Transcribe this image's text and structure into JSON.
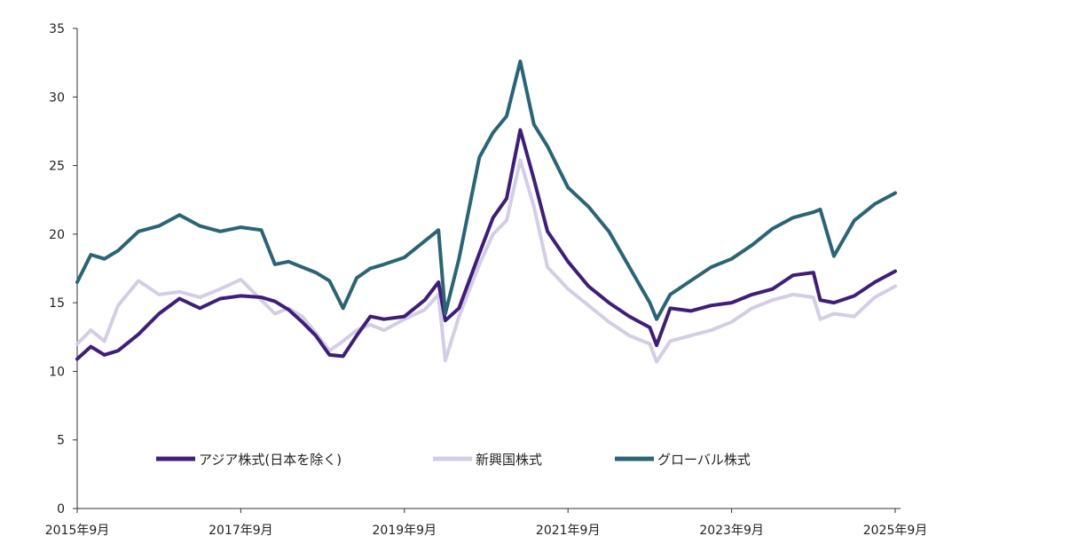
{
  "chart_data": {
    "type": "line",
    "y_axis": {
      "min": 0,
      "max": 35,
      "ticks": [
        0,
        5,
        10,
        15,
        20,
        25,
        30,
        35
      ]
    },
    "x_axis": {
      "min": "2015-09",
      "max": "2025-09",
      "tick_dates": [
        "2015-09",
        "2017-09",
        "2019-09",
        "2021-09",
        "2023-09",
        "2025-09"
      ],
      "tick_labels": [
        "2015年9月",
        "2017年9月",
        "2019年9月",
        "2021年9月",
        "2023年9月",
        "2025年9月"
      ]
    },
    "grid": false,
    "legend": {
      "placement": "bottom-center"
    },
    "series": [
      {
        "name": "アジア株式(日本を除く)",
        "color": "#3f1e78",
        "points": [
          [
            "2015-09",
            10.9
          ],
          [
            "2015-11",
            11.8
          ],
          [
            "2016-01",
            11.2
          ],
          [
            "2016-03",
            11.5
          ],
          [
            "2016-06",
            12.7
          ],
          [
            "2016-09",
            14.2
          ],
          [
            "2016-12",
            15.3
          ],
          [
            "2017-03",
            14.6
          ],
          [
            "2017-06",
            15.3
          ],
          [
            "2017-09",
            15.5
          ],
          [
            "2017-12",
            15.4
          ],
          [
            "2018-02",
            15.1
          ],
          [
            "2018-04",
            14.5
          ],
          [
            "2018-06",
            13.6
          ],
          [
            "2018-08",
            12.6
          ],
          [
            "2018-10",
            11.2
          ],
          [
            "2018-12",
            11.1
          ],
          [
            "2019-02",
            12.6
          ],
          [
            "2019-04",
            14.0
          ],
          [
            "2019-06",
            13.8
          ],
          [
            "2019-09",
            14.0
          ],
          [
            "2019-12",
            15.2
          ],
          [
            "2020-02",
            16.5
          ],
          [
            "2020-03",
            13.7
          ],
          [
            "2020-05",
            14.6
          ],
          [
            "2020-08",
            18.6
          ],
          [
            "2020-10",
            21.2
          ],
          [
            "2020-12",
            22.6
          ],
          [
            "2021-02",
            27.6
          ],
          [
            "2021-04",
            24.0
          ],
          [
            "2021-06",
            20.2
          ],
          [
            "2021-09",
            18.0
          ],
          [
            "2021-12",
            16.2
          ],
          [
            "2022-03",
            15.0
          ],
          [
            "2022-06",
            14.0
          ],
          [
            "2022-09",
            13.2
          ],
          [
            "2022-10",
            11.9
          ],
          [
            "2022-12",
            14.6
          ],
          [
            "2023-03",
            14.4
          ],
          [
            "2023-06",
            14.8
          ],
          [
            "2023-09",
            15.0
          ],
          [
            "2023-12",
            15.6
          ],
          [
            "2024-03",
            16.0
          ],
          [
            "2024-06",
            17.0
          ],
          [
            "2024-09",
            17.2
          ],
          [
            "2024-10",
            15.2
          ],
          [
            "2024-12",
            15.0
          ],
          [
            "2025-03",
            15.5
          ],
          [
            "2025-06",
            16.5
          ],
          [
            "2025-09",
            17.3
          ]
        ]
      },
      {
        "name": "新興国株式",
        "color": "#d4cde6",
        "points": [
          [
            "2015-09",
            12.0
          ],
          [
            "2015-11",
            13.0
          ],
          [
            "2016-01",
            12.2
          ],
          [
            "2016-03",
            14.8
          ],
          [
            "2016-06",
            16.6
          ],
          [
            "2016-09",
            15.6
          ],
          [
            "2016-12",
            15.8
          ],
          [
            "2017-03",
            15.4
          ],
          [
            "2017-06",
            16.0
          ],
          [
            "2017-09",
            16.7
          ],
          [
            "2017-12",
            15.2
          ],
          [
            "2018-02",
            14.2
          ],
          [
            "2018-04",
            14.6
          ],
          [
            "2018-06",
            14.0
          ],
          [
            "2018-08",
            12.8
          ],
          [
            "2018-10",
            11.5
          ],
          [
            "2018-12",
            12.2
          ],
          [
            "2019-02",
            13.0
          ],
          [
            "2019-04",
            13.4
          ],
          [
            "2019-06",
            13.0
          ],
          [
            "2019-09",
            13.8
          ],
          [
            "2019-12",
            14.5
          ],
          [
            "2020-02",
            15.6
          ],
          [
            "2020-03",
            10.8
          ],
          [
            "2020-05",
            14.0
          ],
          [
            "2020-08",
            17.8
          ],
          [
            "2020-10",
            20.0
          ],
          [
            "2020-12",
            21.0
          ],
          [
            "2021-02",
            25.4
          ],
          [
            "2021-04",
            22.0
          ],
          [
            "2021-06",
            17.6
          ],
          [
            "2021-09",
            16.0
          ],
          [
            "2021-12",
            14.8
          ],
          [
            "2022-03",
            13.6
          ],
          [
            "2022-06",
            12.6
          ],
          [
            "2022-09",
            12.0
          ],
          [
            "2022-10",
            10.7
          ],
          [
            "2022-12",
            12.2
          ],
          [
            "2023-03",
            12.6
          ],
          [
            "2023-06",
            13.0
          ],
          [
            "2023-09",
            13.6
          ],
          [
            "2023-12",
            14.6
          ],
          [
            "2024-03",
            15.2
          ],
          [
            "2024-06",
            15.6
          ],
          [
            "2024-09",
            15.4
          ],
          [
            "2024-10",
            13.8
          ],
          [
            "2024-12",
            14.2
          ],
          [
            "2025-03",
            14.0
          ],
          [
            "2025-06",
            15.4
          ],
          [
            "2025-09",
            16.2
          ]
        ]
      },
      {
        "name": "グローバル株式",
        "color": "#2b6475",
        "points": [
          [
            "2015-09",
            16.5
          ],
          [
            "2015-11",
            18.5
          ],
          [
            "2016-01",
            18.2
          ],
          [
            "2016-03",
            18.8
          ],
          [
            "2016-06",
            20.2
          ],
          [
            "2016-09",
            20.6
          ],
          [
            "2016-12",
            21.4
          ],
          [
            "2017-03",
            20.6
          ],
          [
            "2017-06",
            20.2
          ],
          [
            "2017-09",
            20.5
          ],
          [
            "2017-12",
            20.3
          ],
          [
            "2018-02",
            17.8
          ],
          [
            "2018-04",
            18.0
          ],
          [
            "2018-06",
            17.6
          ],
          [
            "2018-08",
            17.2
          ],
          [
            "2018-10",
            16.6
          ],
          [
            "2018-12",
            14.6
          ],
          [
            "2019-02",
            16.8
          ],
          [
            "2019-04",
            17.5
          ],
          [
            "2019-06",
            17.8
          ],
          [
            "2019-09",
            18.3
          ],
          [
            "2019-12",
            19.5
          ],
          [
            "2020-02",
            20.3
          ],
          [
            "2020-03",
            14.2
          ],
          [
            "2020-05",
            18.2
          ],
          [
            "2020-08",
            25.6
          ],
          [
            "2020-10",
            27.4
          ],
          [
            "2020-12",
            28.6
          ],
          [
            "2021-02",
            32.6
          ],
          [
            "2021-04",
            28.0
          ],
          [
            "2021-06",
            26.4
          ],
          [
            "2021-09",
            23.4
          ],
          [
            "2021-12",
            22.0
          ],
          [
            "2022-03",
            20.2
          ],
          [
            "2022-06",
            17.6
          ],
          [
            "2022-09",
            15.0
          ],
          [
            "2022-10",
            13.8
          ],
          [
            "2022-12",
            15.6
          ],
          [
            "2023-03",
            16.6
          ],
          [
            "2023-06",
            17.6
          ],
          [
            "2023-09",
            18.2
          ],
          [
            "2023-12",
            19.2
          ],
          [
            "2024-03",
            20.4
          ],
          [
            "2024-06",
            21.2
          ],
          [
            "2024-09",
            21.6
          ],
          [
            "2024-10",
            21.8
          ],
          [
            "2024-12",
            18.4
          ],
          [
            "2025-03",
            21.0
          ],
          [
            "2025-06",
            22.2
          ],
          [
            "2025-09",
            23.0
          ]
        ]
      }
    ]
  }
}
